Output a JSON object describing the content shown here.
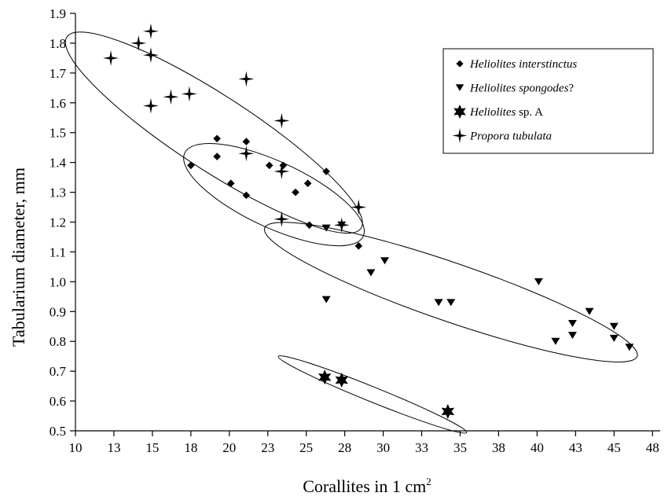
{
  "chart_data": {
    "type": "scatter",
    "xlabel": "Corallites in 1 cm",
    "xlabel_superscript": "2",
    "ylabel": "Tabularium diameter, mm",
    "xlim": [
      10,
      48
    ],
    "ylim": [
      0.5,
      1.9
    ],
    "x_ticks": [
      "10",
      "13",
      "15",
      "18",
      "20",
      "23",
      "25",
      "28",
      "30",
      "33",
      "35",
      "38",
      "40",
      "43",
      "45",
      "48"
    ],
    "y_ticks": [
      "0.5",
      "0.6",
      "0.7",
      "0.8",
      "0.9",
      "1.0",
      "1.1",
      "1.2",
      "1.3",
      "1.4",
      "1.5",
      "1.6",
      "1.7",
      "1.8",
      "1.9"
    ],
    "grid": false,
    "legend_position": "top-right",
    "series": [
      {
        "name": "Heliolites interstinctus",
        "name_italic": "Heliolites interstinctus",
        "name_rest": "",
        "marker": "diamond",
        "points": [
          [
            17.5,
            1.39
          ],
          [
            19.2,
            1.48
          ],
          [
            19.2,
            1.42
          ],
          [
            20.1,
            1.33
          ],
          [
            21.1,
            1.47
          ],
          [
            21.1,
            1.29
          ],
          [
            22.6,
            1.39
          ],
          [
            23.5,
            1.39
          ],
          [
            24.3,
            1.3
          ],
          [
            25.1,
            1.33
          ],
          [
            26.3,
            1.37
          ],
          [
            25.2,
            1.19
          ],
          [
            28.4,
            1.12
          ]
        ]
      },
      {
        "name": "Heliolites spongodes?",
        "name_italic": "Heliolites spongodes",
        "name_rest": "?",
        "marker": "triangle-down",
        "points": [
          [
            26.3,
            1.18
          ],
          [
            27.3,
            1.19
          ],
          [
            26.3,
            0.94
          ],
          [
            29.2,
            1.03
          ],
          [
            30.1,
            1.07
          ],
          [
            33.6,
            0.93
          ],
          [
            34.4,
            0.93
          ],
          [
            40.1,
            1.0
          ],
          [
            41.2,
            0.8
          ],
          [
            42.3,
            0.86
          ],
          [
            42.3,
            0.82
          ],
          [
            43.4,
            0.9
          ],
          [
            45.0,
            0.85
          ],
          [
            45.0,
            0.81
          ],
          [
            46.0,
            0.78
          ]
        ]
      },
      {
        "name": "Heliolites sp. A",
        "name_italic": "Heliolites",
        "name_rest": " sp. A",
        "marker": "star6",
        "points": [
          [
            26.2,
            0.68
          ],
          [
            27.3,
            0.67
          ],
          [
            34.2,
            0.565
          ]
        ]
      },
      {
        "name": "Propora tubulata",
        "name_italic": "Propora  tubulata",
        "name_rest": "",
        "marker": "star4",
        "points": [
          [
            12.3,
            1.75
          ],
          [
            14.1,
            1.8
          ],
          [
            14.9,
            1.84
          ],
          [
            14.9,
            1.76
          ],
          [
            14.9,
            1.59
          ],
          [
            16.2,
            1.62
          ],
          [
            17.4,
            1.63
          ],
          [
            21.1,
            1.68
          ],
          [
            23.4,
            1.54
          ],
          [
            21.1,
            1.43
          ],
          [
            23.4,
            1.37
          ],
          [
            23.4,
            1.21
          ],
          [
            27.3,
            1.19
          ],
          [
            28.4,
            1.25
          ]
        ]
      }
    ],
    "ellipses": [
      {
        "cx": 19.0,
        "cy": 1.5,
        "rx": 11.4,
        "ry": 0.125,
        "angle_deg": 33
      },
      {
        "cx": 22.9,
        "cy": 1.292,
        "rx": 6.4,
        "ry": 0.11,
        "angle_deg": 25
      },
      {
        "cx": 34.4,
        "cy": 0.965,
        "rx": 12.8,
        "ry": 0.098,
        "angle_deg": 19
      },
      {
        "cx": 29.3,
        "cy": 0.622,
        "rx": 6.6,
        "ry": 0.025,
        "angle_deg": 22
      }
    ]
  }
}
